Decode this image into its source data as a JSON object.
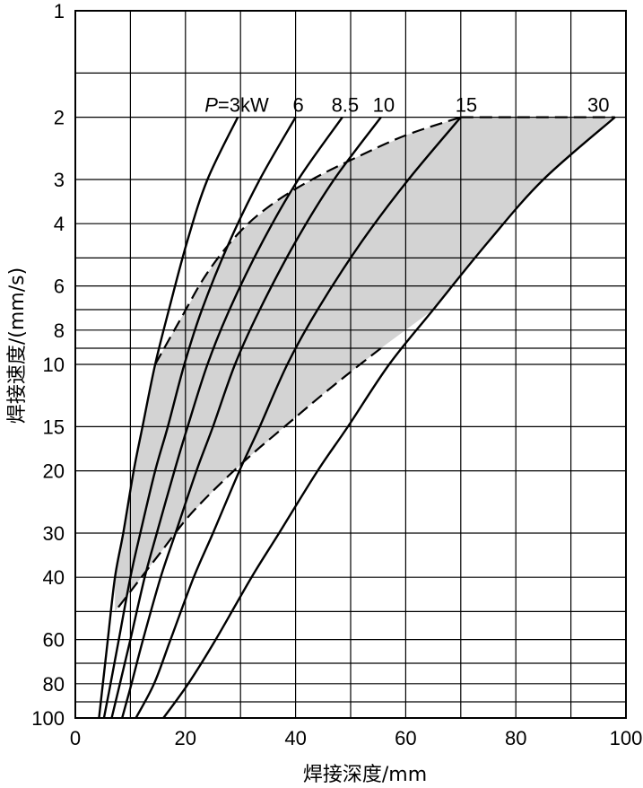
{
  "chart_data": {
    "type": "line",
    "xlabel": "焊接深度/mm",
    "ylabel": "焊接速度/(mm/s)",
    "x_range": [
      0,
      100
    ],
    "x_ticks": [
      0,
      20,
      40,
      60,
      80,
      100
    ],
    "x_gridlines": [
      0,
      10,
      20,
      30,
      40,
      50,
      60,
      70,
      80,
      90,
      100
    ],
    "y_scale": "log",
    "y_inverted": true,
    "y_range": [
      1,
      100
    ],
    "y_tick_labels": [
      {
        "value": 1,
        "label": "1"
      },
      {
        "value": 2,
        "label": "2"
      },
      {
        "value": 3,
        "label": "3"
      },
      {
        "value": 4,
        "label": "4"
      },
      {
        "value": 6,
        "label": "6"
      },
      {
        "value": 8,
        "label": "8"
      },
      {
        "value": 10,
        "label": "10"
      },
      {
        "value": 15,
        "label": "15"
      },
      {
        "value": 20,
        "label": "20"
      },
      {
        "value": 30,
        "label": "30"
      },
      {
        "value": 40,
        "label": "40"
      },
      {
        "value": 60,
        "label": "60"
      },
      {
        "value": 80,
        "label": "80"
      },
      {
        "value": 100,
        "label": "100"
      }
    ],
    "y_gridlines": [
      1,
      1.5,
      2,
      3,
      4,
      5,
      6,
      7,
      8,
      9,
      10,
      15,
      20,
      30,
      40,
      50,
      60,
      70,
      80,
      90,
      100
    ],
    "grid": true,
    "series_label_prefix": "P=",
    "series_label_unit": "kW",
    "series": [
      {
        "name": "3",
        "label_x": 27,
        "points": [
          [
            29.5,
            2
          ],
          [
            24,
            3
          ],
          [
            20.3,
            4.5
          ],
          [
            17,
            7
          ],
          [
            14.5,
            10
          ],
          [
            12.2,
            15
          ],
          [
            10.6,
            20
          ],
          [
            8.7,
            30
          ],
          [
            7.2,
            40
          ],
          [
            5.9,
            60
          ],
          [
            5,
            80
          ],
          [
            4.3,
            100
          ]
        ]
      },
      {
        "name": "6",
        "label_x": 40.5,
        "points": [
          [
            40,
            2
          ],
          [
            33.5,
            3
          ],
          [
            28,
            4.5
          ],
          [
            23,
            7
          ],
          [
            19.8,
            10
          ],
          [
            16.8,
            15
          ],
          [
            14.5,
            20
          ],
          [
            11.8,
            30
          ],
          [
            10,
            40
          ],
          [
            7.9,
            60
          ],
          [
            6.4,
            80
          ],
          [
            5.2,
            100
          ]
        ]
      },
      {
        "name": "8.5",
        "label_x": 49,
        "points": [
          [
            48.5,
            2
          ],
          [
            40.5,
            3
          ],
          [
            34,
            4.5
          ],
          [
            28,
            7
          ],
          [
            24,
            10
          ],
          [
            20.4,
            15
          ],
          [
            18,
            20
          ],
          [
            14.8,
            30
          ],
          [
            12.6,
            40
          ],
          [
            10,
            60
          ],
          [
            8.1,
            80
          ],
          [
            6.6,
            100
          ]
        ]
      },
      {
        "name": "10",
        "label_x": 56,
        "points": [
          [
            55.5,
            2
          ],
          [
            47,
            3
          ],
          [
            40,
            4.5
          ],
          [
            33.5,
            7
          ],
          [
            29,
            10
          ],
          [
            25,
            15
          ],
          [
            22,
            20
          ],
          [
            18.2,
            30
          ],
          [
            15.5,
            40
          ],
          [
            12.3,
            60
          ],
          [
            10.2,
            80
          ],
          [
            8.5,
            100
          ]
        ]
      },
      {
        "name": "15",
        "label_x": 71,
        "points": [
          [
            70,
            2
          ],
          [
            60.5,
            3
          ],
          [
            52,
            4.5
          ],
          [
            44,
            7
          ],
          [
            38.5,
            10
          ],
          [
            33.5,
            15
          ],
          [
            29.8,
            20
          ],
          [
            25,
            30
          ],
          [
            21.5,
            40
          ],
          [
            17.3,
            60
          ],
          [
            14.3,
            80
          ],
          [
            11,
            100
          ]
        ]
      },
      {
        "name": "30",
        "label_x": 95,
        "points": [
          [
            98,
            2
          ],
          [
            85,
            3
          ],
          [
            75,
            4.5
          ],
          [
            65,
            7
          ],
          [
            57,
            10
          ],
          [
            49.5,
            15
          ],
          [
            44,
            20
          ],
          [
            37,
            30
          ],
          [
            32,
            40
          ],
          [
            25.5,
            60
          ],
          [
            20.5,
            80
          ],
          [
            16,
            100
          ]
        ]
      }
    ],
    "shaded_region": {
      "fill": "#d3d3d3",
      "upper_boundary_dashed": [
        [
          14.5,
          10
        ],
        [
          19,
          7.5
        ],
        [
          24,
          5.5
        ],
        [
          30,
          4.2
        ],
        [
          36,
          3.5
        ],
        [
          43,
          3
        ],
        [
          51,
          2.6
        ],
        [
          60,
          2.25
        ],
        [
          70,
          2
        ]
      ],
      "top_boundary_dashed": [
        [
          70,
          2
        ],
        [
          98,
          2
        ]
      ],
      "lower_boundary_dashed": [
        [
          55.5,
          9
        ],
        [
          50,
          10.5
        ],
        [
          44,
          12.5
        ],
        [
          38,
          15
        ],
        [
          32,
          18
        ],
        [
          26,
          22
        ],
        [
          20.5,
          27
        ],
        [
          15.5,
          34
        ],
        [
          12,
          40
        ],
        [
          9,
          46
        ],
        [
          7.2,
          50
        ]
      ]
    },
    "colors": {
      "line": "#000000",
      "shade": "#d3d3d3",
      "grid": "#000000",
      "background": "#ffffff"
    }
  }
}
